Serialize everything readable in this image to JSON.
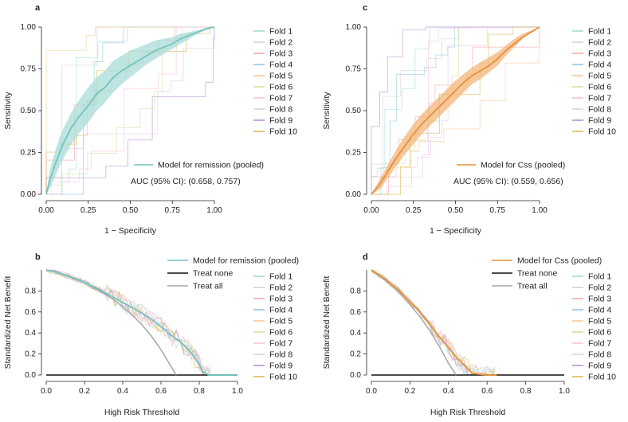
{
  "colors": {
    "remission": "#72c4c0",
    "remission_band": "#a8dcd8",
    "css": "#e8903c",
    "css_band": "#f3b57a",
    "treat_none": "#111111",
    "treat_all": "#aaaaaa"
  },
  "chart_data": [
    {
      "panel": "a",
      "type": "line",
      "xlabel": "1 − Specificity",
      "ylabel": "Sensitivity",
      "xlim": [
        0,
        1
      ],
      "ylim": [
        0,
        1
      ],
      "x_ticks": [
        "0.00",
        "0.25",
        "0.50",
        "0.75",
        "1.00"
      ],
      "y_ticks": [
        "0.00",
        "0.25",
        "0.50",
        "0.75",
        "1.00"
      ],
      "legend": {
        "entries": [
          "Fold 1",
          "Fold 2",
          "Fold 3",
          "Fold 4",
          "Fold 5",
          "Fold 6",
          "Fold 7",
          "Fold 8",
          "Fold 9",
          "Fold 10"
        ],
        "colors": [
          "#9fd8d2",
          "#cfcfcf",
          "#f6a49a",
          "#8cc4de",
          "#f6c690",
          "#c8e29a",
          "#f7bede",
          "#e2c7e6",
          "#b48ad1",
          "#d8b24a"
        ]
      },
      "pooled_label": "Model for remission (pooled)",
      "auc_text": "AUC (95% CI): (0.658, 0.757)",
      "series": [
        {
          "name": "Model for remission (pooled)",
          "x": [
            0,
            0.02,
            0.05,
            0.08,
            0.1,
            0.15,
            0.2,
            0.25,
            0.3,
            0.35,
            0.4,
            0.45,
            0.5,
            0.55,
            0.6,
            0.65,
            0.7,
            0.75,
            0.8,
            0.85,
            0.9,
            0.95,
            1.0
          ],
          "y": [
            0,
            0.08,
            0.17,
            0.25,
            0.3,
            0.4,
            0.47,
            0.53,
            0.6,
            0.64,
            0.7,
            0.74,
            0.77,
            0.8,
            0.83,
            0.86,
            0.88,
            0.9,
            0.93,
            0.95,
            0.97,
            0.99,
            1.0
          ],
          "lower": [
            0,
            0.03,
            0.1,
            0.17,
            0.21,
            0.3,
            0.37,
            0.43,
            0.5,
            0.55,
            0.61,
            0.66,
            0.7,
            0.74,
            0.78,
            0.81,
            0.84,
            0.87,
            0.9,
            0.93,
            0.96,
            0.98,
            1.0
          ],
          "upper": [
            0,
            0.14,
            0.25,
            0.34,
            0.39,
            0.49,
            0.57,
            0.64,
            0.7,
            0.74,
            0.8,
            0.83,
            0.86,
            0.88,
            0.9,
            0.92,
            0.93,
            0.94,
            0.96,
            0.97,
            0.98,
            0.99,
            1.0
          ]
        }
      ]
    },
    {
      "panel": "c",
      "type": "line",
      "xlabel": "1 − Specificity",
      "ylabel": "Sensitivity",
      "xlim": [
        0,
        1
      ],
      "ylim": [
        0,
        1
      ],
      "x_ticks": [
        "0.00",
        "0.25",
        "0.50",
        "0.75",
        "1.00"
      ],
      "y_ticks": [
        "0.00",
        "0.25",
        "0.50",
        "0.75",
        "1.00"
      ],
      "legend": {
        "entries": [
          "Fold 1",
          "Fold 2",
          "Fold 3",
          "Fold 4",
          "Fold 5",
          "Fold 6",
          "Fold 7",
          "Fold 8",
          "Fold 9",
          "Fold 10"
        ],
        "colors": [
          "#9fd8d2",
          "#cfcfcf",
          "#f6a49a",
          "#8cc4de",
          "#f6c690",
          "#c8e29a",
          "#f7bede",
          "#e2c7e6",
          "#b48ad1",
          "#d8b24a"
        ]
      },
      "pooled_label": "Model for Css (pooled)",
      "auc_text": "AUC (95% CI): (0.559, 0.656)",
      "series": [
        {
          "name": "Model for Css (pooled)",
          "x": [
            0,
            0.05,
            0.1,
            0.15,
            0.2,
            0.25,
            0.3,
            0.35,
            0.4,
            0.45,
            0.5,
            0.55,
            0.6,
            0.65,
            0.7,
            0.75,
            0.8,
            0.85,
            0.9,
            0.95,
            1.0
          ],
          "y": [
            0,
            0.06,
            0.14,
            0.22,
            0.29,
            0.36,
            0.42,
            0.47,
            0.52,
            0.57,
            0.62,
            0.67,
            0.71,
            0.74,
            0.77,
            0.81,
            0.86,
            0.9,
            0.94,
            0.97,
            1.0
          ],
          "lower": [
            0,
            0.03,
            0.1,
            0.17,
            0.24,
            0.3,
            0.36,
            0.41,
            0.46,
            0.51,
            0.56,
            0.61,
            0.66,
            0.69,
            0.73,
            0.77,
            0.83,
            0.88,
            0.93,
            0.97,
            1.0
          ],
          "upper": [
            0,
            0.09,
            0.18,
            0.27,
            0.35,
            0.42,
            0.48,
            0.53,
            0.58,
            0.63,
            0.68,
            0.72,
            0.76,
            0.79,
            0.82,
            0.85,
            0.89,
            0.93,
            0.96,
            0.98,
            1.0
          ]
        }
      ]
    },
    {
      "panel": "b",
      "type": "line",
      "xlabel": "High Risk Threshold",
      "ylabel": "Standardized Net Benefit",
      "xlim": [
        0,
        1
      ],
      "ylim": [
        0,
        1
      ],
      "x_ticks": [
        "0.0",
        "0.2",
        "0.4",
        "0.6",
        "0.8",
        "1.0"
      ],
      "y_ticks": [
        "0.0",
        "0.2",
        "0.4",
        "0.6",
        "0.8"
      ],
      "legend": {
        "entries": [
          "Model for remission (pooled)",
          "Treat none",
          "Treat all"
        ],
        "fold_entries": [
          "Fold 1",
          "Fold 2",
          "Fold 3",
          "Fold 4",
          "Fold 5",
          "Fold 6",
          "Fold 7",
          "Fold 8",
          "Fold 9",
          "Fold 10"
        ],
        "fold_colors": [
          "#9fd8d2",
          "#cfcfcf",
          "#f6a49a",
          "#8cc4de",
          "#f6c690",
          "#c8e29a",
          "#f7bede",
          "#e2c7e6",
          "#b48ad1",
          "#d8b24a"
        ]
      },
      "series": [
        {
          "name": "Model for remission (pooled)",
          "x": [
            0,
            0.05,
            0.1,
            0.15,
            0.2,
            0.25,
            0.3,
            0.35,
            0.4,
            0.45,
            0.5,
            0.55,
            0.6,
            0.65,
            0.7,
            0.75,
            0.8,
            0.82,
            0.85,
            0.9,
            1.0
          ],
          "y": [
            1,
            0.98,
            0.95,
            0.92,
            0.88,
            0.84,
            0.79,
            0.74,
            0.69,
            0.64,
            0.59,
            0.53,
            0.46,
            0.38,
            0.32,
            0.23,
            0.1,
            0.03,
            0,
            0,
            0
          ]
        },
        {
          "name": "Treat none",
          "x": [
            0,
            1
          ],
          "y": [
            0,
            0
          ]
        },
        {
          "name": "Treat all",
          "x": [
            0,
            0.05,
            0.1,
            0.15,
            0.2,
            0.25,
            0.3,
            0.35,
            0.4,
            0.45,
            0.5,
            0.55,
            0.6,
            0.65,
            0.68
          ],
          "y": [
            1,
            0.98,
            0.95,
            0.92,
            0.88,
            0.83,
            0.78,
            0.72,
            0.65,
            0.57,
            0.48,
            0.37,
            0.24,
            0.09,
            0
          ]
        }
      ]
    },
    {
      "panel": "d",
      "type": "line",
      "xlabel": "High Risk Threshold",
      "ylabel": "Standardized Net Benefit",
      "xlim": [
        0,
        1
      ],
      "ylim": [
        0,
        1
      ],
      "x_ticks": [
        "0.0",
        "0.2",
        "0.4",
        "0.6",
        "0.8",
        "1.0"
      ],
      "y_ticks": [
        "0.0",
        "0.2",
        "0.4",
        "0.6",
        "0.8"
      ],
      "legend": {
        "entries": [
          "Model for Css (pooled)",
          "Treat none",
          "Treat all"
        ],
        "fold_entries": [
          "Fold 1",
          "Fold 2",
          "Fold 3",
          "Fold 4",
          "Fold 5",
          "Fold 6",
          "Fold 7",
          "Fold 8",
          "Fold 9",
          "Fold 10"
        ],
        "fold_colors": [
          "#9fd8d2",
          "#cfcfcf",
          "#f6a49a",
          "#8cc4de",
          "#f6c690",
          "#c8e29a",
          "#f7bede",
          "#e2c7e6",
          "#b48ad1",
          "#d8b24a"
        ]
      },
      "series": [
        {
          "name": "Model for Css (pooled)",
          "x": [
            0,
            0.05,
            0.1,
            0.15,
            0.2,
            0.25,
            0.3,
            0.35,
            0.4,
            0.45,
            0.5,
            0.52,
            0.55,
            0.6,
            0.65
          ],
          "y": [
            1,
            0.94,
            0.87,
            0.79,
            0.7,
            0.6,
            0.49,
            0.37,
            0.26,
            0.15,
            0.06,
            0.02,
            0.01,
            0,
            0
          ]
        },
        {
          "name": "Treat none",
          "x": [
            0,
            1
          ],
          "y": [
            0,
            0
          ]
        },
        {
          "name": "Treat all",
          "x": [
            0,
            0.05,
            0.1,
            0.15,
            0.2,
            0.25,
            0.3,
            0.35,
            0.4,
            0.44
          ],
          "y": [
            1,
            0.93,
            0.86,
            0.77,
            0.67,
            0.56,
            0.43,
            0.28,
            0.11,
            0
          ]
        }
      ]
    }
  ]
}
